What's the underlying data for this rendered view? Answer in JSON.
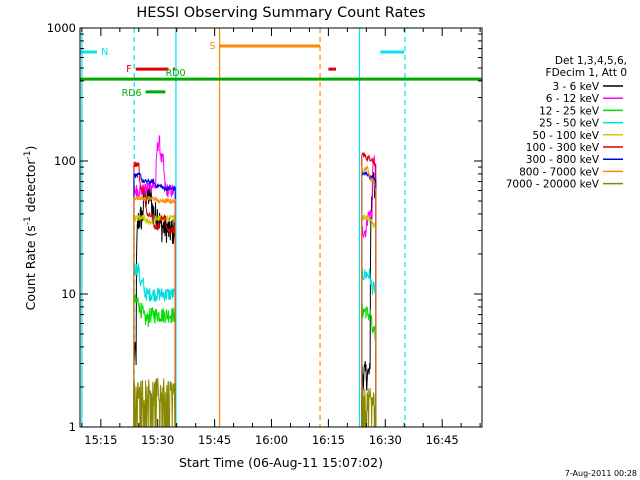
{
  "chart_data": {
    "type": "line",
    "title": "HESSI Observing Summary Count Rates",
    "xlabel": "Start Time (06-Aug-11 15:07:02)",
    "ylabel": "Count Rate (s",
    "ylabel_sup": "-1",
    "ylabel_mid": " detector",
    "ylabel_end": ")",
    "y_scale": "log",
    "ylim": [
      1,
      1000
    ],
    "xlim_minutes": [
      -5.5,
      100.5
    ],
    "x_ticks": [
      {
        "label": "15:15",
        "min": 0
      },
      {
        "label": "15:30",
        "min": 15
      },
      {
        "label": "15:45",
        "min": 30
      },
      {
        "label": "16:00",
        "min": 45
      },
      {
        "label": "16:15",
        "min": 60
      },
      {
        "label": "16:30",
        "min": 75
      },
      {
        "label": "16:45",
        "min": 90
      }
    ],
    "y_ticks": [
      {
        "label": "1",
        "value": 1
      },
      {
        "label": "10",
        "value": 10
      },
      {
        "label": "100",
        "value": 100
      },
      {
        "label": "1000",
        "value": 1000
      }
    ],
    "legend_placement": "right",
    "legend_header": [
      "Det 1,3,4,5,6,",
      "FDecim 1, Att 0"
    ],
    "segments": [
      [
        8.7,
        19.6
      ],
      [
        68.8,
        72.5
      ]
    ],
    "series": [
      {
        "name": "3 - 6 keV",
        "color": "#000000",
        "base": [
          3.5,
          2.5
        ],
        "amp": 0.5,
        "jump": [
          [
            9.3,
            38
          ],
          [
            11.0,
            55
          ],
          [
            13.3,
            40
          ],
          [
            15.3,
            32
          ],
          [
            17.3,
            30
          ],
          [
            71.0,
            60
          ],
          [
            71.6,
            100
          ],
          [
            72.0,
            45
          ]
        ]
      },
      {
        "name": "6 - 12 keV",
        "color": "#ff00ff",
        "base": [
          60,
          30
        ],
        "amp": 0.25,
        "jump": [
          [
            12.0,
            65
          ],
          [
            14.5,
            140
          ],
          [
            15.5,
            100
          ],
          [
            16.5,
            60
          ],
          [
            70.0,
            40
          ],
          [
            71.5,
            120
          ],
          [
            72.0,
            75
          ]
        ]
      },
      {
        "name": "12 - 25 keV",
        "color": "#00dd00",
        "base": [
          8.8,
          7.5
        ],
        "amp": 0.28,
        "jump": [
          [
            10.0,
            7.5
          ],
          [
            11.0,
            6.5
          ],
          [
            12.5,
            7.0
          ],
          [
            70.0,
            7.0
          ],
          [
            71.2,
            5.0
          ]
        ]
      },
      {
        "name": "25 - 50 keV",
        "color": "#00dddd",
        "base": [
          15.5,
          14.0
        ],
        "amp": 0.25,
        "jump": [
          [
            10.0,
            12
          ],
          [
            11.2,
            10
          ],
          [
            70.0,
            14
          ],
          [
            71.0,
            11
          ]
        ]
      },
      {
        "name": "50 - 100 keV",
        "color": "#cccc00",
        "base": [
          37,
          38
        ],
        "amp": 0.12,
        "jump": [
          [
            11.5,
            35
          ],
          [
            14.0,
            37
          ],
          [
            70.5,
            36
          ],
          [
            71.5,
            32
          ]
        ]
      },
      {
        "name": "100 - 300 keV",
        "color": "#dd0000",
        "base": [
          95,
          112
        ],
        "amp": 0.1,
        "jump": [
          [
            10.0,
            60
          ],
          [
            11.5,
            40
          ],
          [
            13.5,
            32
          ],
          [
            15.5,
            38
          ],
          [
            17.0,
            30
          ],
          [
            69.5,
            105
          ],
          [
            71.5,
            95
          ]
        ]
      },
      {
        "name": "300 - 800 keV",
        "color": "#0000dd",
        "base": [
          78,
          80
        ],
        "amp": 0.08,
        "jump": [
          [
            10.5,
            70
          ],
          [
            14.0,
            65
          ],
          [
            16.0,
            62
          ],
          [
            70.5,
            75
          ],
          [
            72.0,
            70
          ]
        ]
      },
      {
        "name": "800 - 7000 keV",
        "color": "#ff8800",
        "base": [
          53,
          88
        ],
        "amp": 0.08,
        "jump": [
          [
            10.5,
            52
          ],
          [
            14.5,
            50
          ],
          [
            70.5,
            72
          ],
          [
            72.0,
            60
          ]
        ]
      },
      {
        "name": "7000 - 20000 keV",
        "color": "#888800",
        "base": [
          1.9,
          1.6
        ],
        "amp": 0.45,
        "jump": []
      }
    ],
    "flag_bars": [
      {
        "label": "N",
        "color": "#00e5ee",
        "min": [
          [
            -5.5,
            -1.0
          ],
          [
            73.7,
            80.0
          ]
        ],
        "yfrac": 0.06
      },
      {
        "label": "S",
        "color": "#ff8800",
        "min": [
          [
            31.3,
            57.8
          ]
        ],
        "yfrac": 0.045
      },
      {
        "label": "F",
        "color": "#dd0000",
        "min": [
          [
            9.2,
            17.8
          ],
          [
            19.0,
            19.5
          ],
          [
            60.0,
            62.0
          ]
        ],
        "yfrac": 0.103
      },
      {
        "label": "RD0",
        "color": "#00aa00",
        "min": [
          [
            -5.5,
            100.5
          ]
        ],
        "yfrac": 0.128
      },
      {
        "label": "RD6",
        "color": "#00aa00",
        "min": [
          [
            11.8,
            17.0
          ]
        ],
        "yfrac": 0.16
      }
    ],
    "vlines": [
      {
        "min": -5.0,
        "color": "#00e5ee",
        "style": "solid"
      },
      {
        "min": 8.8,
        "color": "#00e5ee",
        "style": "dashed"
      },
      {
        "min": 19.8,
        "color": "#00e5ee",
        "style": "solid"
      },
      {
        "min": 31.3,
        "color": "#ff8800",
        "style": "solid"
      },
      {
        "min": 57.8,
        "color": "#ff8800",
        "style": "dashed"
      },
      {
        "min": 68.2,
        "color": "#00e5ee",
        "style": "solid"
      },
      {
        "min": 80.2,
        "color": "#00e5ee",
        "style": "dashed"
      }
    ],
    "timestamp": "7-Aug-2011 00:28"
  }
}
